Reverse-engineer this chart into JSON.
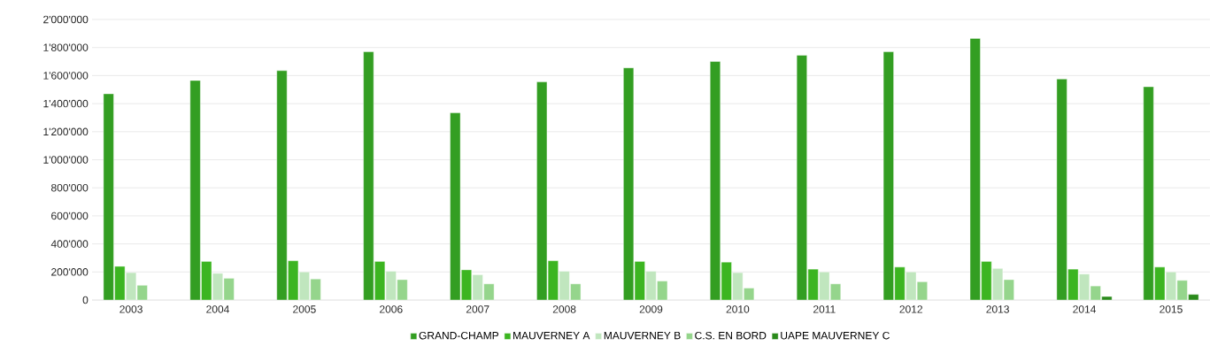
{
  "chart_data": {
    "type": "bar",
    "categories": [
      "2003",
      "2004",
      "2005",
      "2006",
      "2007",
      "2008",
      "2009",
      "2010",
      "2011",
      "2012",
      "2013",
      "2014",
      "2015"
    ],
    "series": [
      {
        "name": "GRAND-CHAMP",
        "color": "#339e22",
        "values": [
          1470000,
          1565000,
          1635000,
          1770000,
          1335000,
          1555000,
          1655000,
          1700000,
          1745000,
          1770000,
          1865000,
          1575000,
          1520000
        ]
      },
      {
        "name": "MAUVERNEY A",
        "color": "#3cb521",
        "values": [
          240000,
          275000,
          280000,
          275000,
          215000,
          280000,
          275000,
          270000,
          220000,
          235000,
          275000,
          220000,
          235000
        ]
      },
      {
        "name": "MAUVERNEY B",
        "color": "#c0e6be",
        "values": [
          195000,
          190000,
          200000,
          205000,
          180000,
          205000,
          205000,
          195000,
          200000,
          200000,
          225000,
          185000,
          200000
        ]
      },
      {
        "name": "C.S. EN BORD",
        "color": "#95d58c",
        "values": [
          105000,
          155000,
          150000,
          145000,
          115000,
          115000,
          135000,
          85000,
          115000,
          130000,
          145000,
          100000,
          140000
        ]
      },
      {
        "name": "UAPE MAUVERNEY C",
        "color": "#2a8a1b",
        "values": [
          null,
          null,
          null,
          null,
          null,
          null,
          null,
          null,
          null,
          null,
          null,
          25000,
          40000
        ]
      }
    ],
    "ylim": [
      0,
      2000000
    ],
    "yticks": [
      {
        "value": 0,
        "label": "0"
      },
      {
        "value": 200000,
        "label": "200'000"
      },
      {
        "value": 400000,
        "label": "400'000"
      },
      {
        "value": 600000,
        "label": "600'000"
      },
      {
        "value": 800000,
        "label": "800'000"
      },
      {
        "value": 1000000,
        "label": "1'000'000"
      },
      {
        "value": 1200000,
        "label": "1'200'000"
      },
      {
        "value": 1400000,
        "label": "1'400'000"
      },
      {
        "value": 1600000,
        "label": "1'600'000"
      },
      {
        "value": 1800000,
        "label": "1'800'000"
      },
      {
        "value": 2000000,
        "label": "2'000'000"
      }
    ],
    "grid": "y",
    "legend": "bottom"
  }
}
